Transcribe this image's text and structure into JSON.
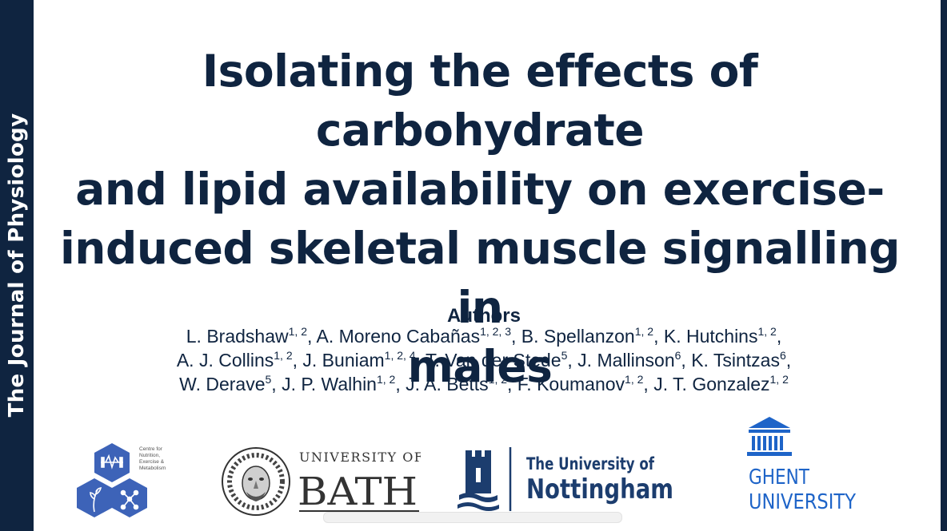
{
  "journal": {
    "name": "The Journal of Physiology"
  },
  "title": {
    "lines": [
      "Isolating the effects of carbohydrate",
      "and lipid availability on exercise-",
      "induced skeletal muscle signalling in",
      "males"
    ]
  },
  "authors": {
    "heading": "Authors",
    "lines": [
      [
        {
          "name": "L. Bradshaw",
          "aff": "1, 2"
        },
        {
          "name": "A. Moreno Cabañas",
          "aff": "1, 2, 3"
        },
        {
          "name": "B. Spellanzon",
          "aff": "1, 2"
        },
        {
          "name": "K. Hutchins",
          "aff": "1, 2"
        }
      ],
      [
        {
          "name": "A. J. Collins",
          "aff": "1, 2"
        },
        {
          "name": "J. Buniam",
          "aff": "1, 2, 4"
        },
        {
          "name": "T. Van der Stede",
          "aff": "5"
        },
        {
          "name": "J. Mallinson",
          "aff": "6"
        },
        {
          "name": "K. Tsintzas",
          "aff": "6"
        }
      ],
      [
        {
          "name": "W. Derave",
          "aff": "5"
        },
        {
          "name": "J. P. Walhin",
          "aff": "1, 2"
        },
        {
          "name": "J. A. Betts",
          "aff": "1, 2"
        },
        {
          "name": "F. Koumanov",
          "aff": "1, 2"
        },
        {
          "name": "J. T. Gonzalez",
          "aff": "1, 2"
        }
      ]
    ]
  },
  "logos": {
    "cnem": {
      "text_lines": [
        "Centre for",
        "Nutrition,",
        "Exercise &",
        "Metabolism"
      ]
    },
    "bath": {
      "line1": "UNIVERSITY OF",
      "line2": "BATH"
    },
    "nottingham": {
      "line1": "The University of",
      "line2": "Nottingham"
    },
    "ghent": {
      "line1": "GHENT",
      "line2": "UNIVERSITY"
    }
  },
  "colors": {
    "navy": "#0f2440",
    "cnem_blue": "#3d63b8",
    "ghent_blue": "#1e64c8",
    "nottingham_blue": "#1c3d6e"
  }
}
